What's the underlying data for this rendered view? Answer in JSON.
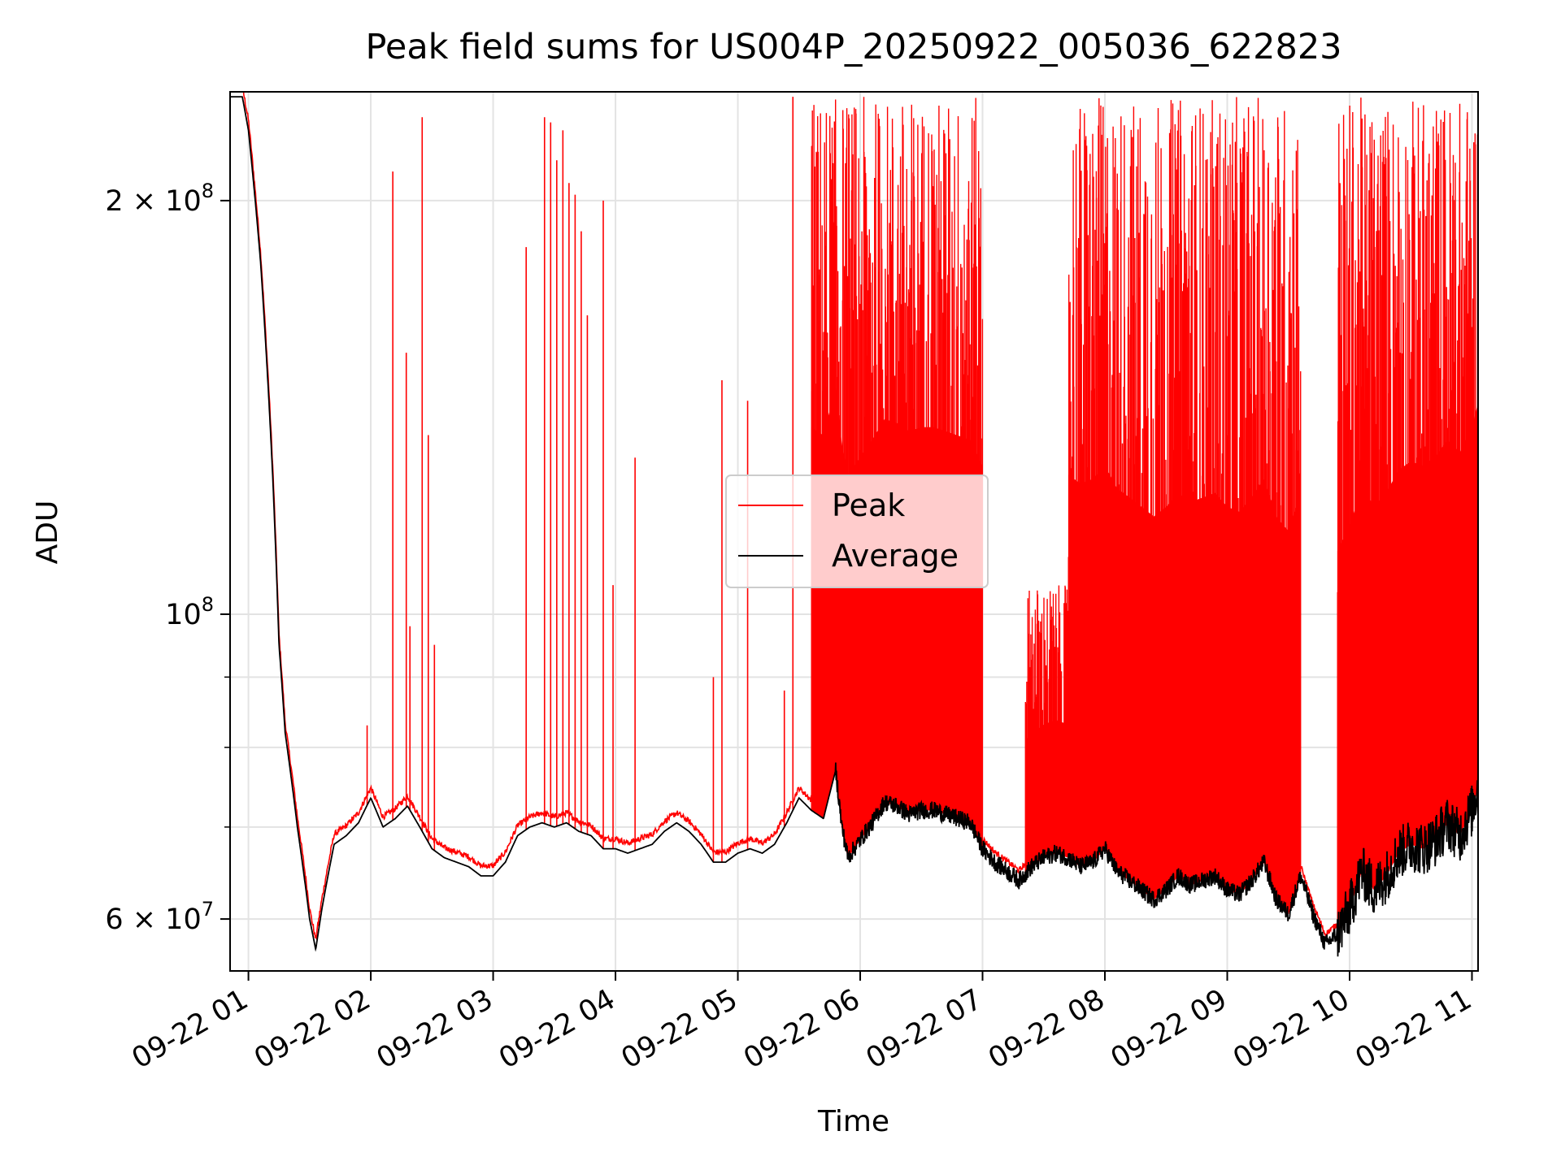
{
  "chart_data": {
    "type": "line",
    "title": "Peak field sums for US004P_20250922_005036_622823",
    "xlabel": "Time",
    "ylabel": "ADU",
    "yscale": "log",
    "ylim": [
      55000000,
      240000000
    ],
    "xlim_hours": [
      0.85,
      11.05
    ],
    "grid": true,
    "legend_position": "center",
    "x_ticks": [
      {
        "hour": 1,
        "label": "09-22 01"
      },
      {
        "hour": 2,
        "label": "09-22 02"
      },
      {
        "hour": 3,
        "label": "09-22 03"
      },
      {
        "hour": 4,
        "label": "09-22 04"
      },
      {
        "hour": 5,
        "label": "09-22 05"
      },
      {
        "hour": 6,
        "label": "09-22 06"
      },
      {
        "hour": 7,
        "label": "09-22 07"
      },
      {
        "hour": 8,
        "label": "09-22 08"
      },
      {
        "hour": 9,
        "label": "09-22 09"
      },
      {
        "hour": 10,
        "label": "09-22 10"
      },
      {
        "hour": 11,
        "label": "09-22 11"
      }
    ],
    "y_ticks": [
      {
        "value": 60000000,
        "base": "6 × 10",
        "exp": "7"
      },
      {
        "value": 100000000,
        "base": "10",
        "exp": "8"
      },
      {
        "value": 200000000,
        "base": "2 × 10",
        "exp": "8"
      }
    ],
    "y_minor_ticks": [
      70000000,
      80000000,
      90000000
    ],
    "series": [
      {
        "name": "Average",
        "color": "#000000",
        "hours": [
          0.85,
          0.95,
          1.0,
          1.1,
          1.2,
          1.25,
          1.3,
          1.4,
          1.5,
          1.55,
          1.6,
          1.7,
          1.8,
          1.9,
          2.0,
          2.1,
          2.2,
          2.3,
          2.4,
          2.5,
          2.6,
          2.7,
          2.8,
          2.9,
          3.0,
          3.1,
          3.2,
          3.3,
          3.4,
          3.5,
          3.6,
          3.7,
          3.8,
          3.9,
          4.0,
          4.1,
          4.2,
          4.3,
          4.4,
          4.5,
          4.6,
          4.7,
          4.8,
          4.9,
          5.0,
          5.1,
          5.2,
          5.3,
          5.4,
          5.5,
          5.6,
          5.7,
          5.8,
          5.85,
          5.9,
          6.0,
          6.1,
          6.2,
          6.3,
          6.4,
          6.5,
          6.6,
          6.7,
          6.8,
          6.9,
          7.0,
          7.1,
          7.2,
          7.3,
          7.4,
          7.5,
          7.6,
          7.7,
          7.8,
          7.9,
          8.0,
          8.1,
          8.2,
          8.3,
          8.4,
          8.5,
          8.6,
          8.7,
          8.8,
          8.9,
          9.0,
          9.1,
          9.2,
          9.3,
          9.4,
          9.5,
          9.6,
          9.7,
          9.8,
          9.9,
          10.0,
          10.1,
          10.2,
          10.3,
          10.4,
          10.5,
          10.6,
          10.7,
          10.8,
          10.9,
          11.0,
          11.05
        ],
        "values": [
          238000000,
          238000000,
          225000000,
          180000000,
          125000000,
          95000000,
          82000000,
          70000000,
          60000000,
          57000000,
          61000000,
          68000000,
          69000000,
          70500000,
          73500000,
          70000000,
          71000000,
          72500000,
          70000000,
          67500000,
          66500000,
          66000000,
          65500000,
          64500000,
          64500000,
          66000000,
          69000000,
          70000000,
          70500000,
          70000000,
          70500000,
          69500000,
          69000000,
          67500000,
          67500000,
          67000000,
          67500000,
          68000000,
          69500000,
          70500000,
          69500000,
          68000000,
          66000000,
          66000000,
          67000000,
          67500000,
          67000000,
          68000000,
          70500000,
          73500000,
          72000000,
          71000000,
          77000000,
          70000000,
          66500000,
          68500000,
          70500000,
          73000000,
          72500000,
          71500000,
          72000000,
          72000000,
          71500000,
          71000000,
          70500000,
          67500000,
          66000000,
          65000000,
          64000000,
          65500000,
          66500000,
          67000000,
          66500000,
          65500000,
          66000000,
          67500000,
          65000000,
          64000000,
          63000000,
          62000000,
          63000000,
          64500000,
          63500000,
          64000000,
          64500000,
          63000000,
          62500000,
          64000000,
          66000000,
          62000000,
          60500000,
          64500000,
          60500000,
          57500000,
          58500000,
          61000000,
          65000000,
          63000000,
          64500000,
          67000000,
          68000000,
          67500000,
          68500000,
          70500000,
          69000000,
          72000000,
          75000000
        ]
      },
      {
        "name": "Peak",
        "color": "#ff0000",
        "spikes": [
          {
            "hour": 1.97,
            "value": 83000000
          },
          {
            "hour": 2.18,
            "value": 210000000
          },
          {
            "hour": 2.29,
            "value": 155000000
          },
          {
            "hour": 2.32,
            "value": 98000000
          },
          {
            "hour": 2.42,
            "value": 230000000
          },
          {
            "hour": 2.47,
            "value": 135000000
          },
          {
            "hour": 2.52,
            "value": 95000000
          },
          {
            "hour": 3.27,
            "value": 185000000
          },
          {
            "hour": 3.42,
            "value": 230000000
          },
          {
            "hour": 3.47,
            "value": 228000000
          },
          {
            "hour": 3.52,
            "value": 214000000
          },
          {
            "hour": 3.57,
            "value": 225000000
          },
          {
            "hour": 3.62,
            "value": 206000000
          },
          {
            "hour": 3.67,
            "value": 202000000
          },
          {
            "hour": 3.72,
            "value": 190000000
          },
          {
            "hour": 3.77,
            "value": 165000000
          },
          {
            "hour": 3.9,
            "value": 200000000
          },
          {
            "hour": 3.98,
            "value": 105000000
          },
          {
            "hour": 4.16,
            "value": 130000000
          },
          {
            "hour": 4.8,
            "value": 90000000
          },
          {
            "hour": 4.87,
            "value": 148000000
          },
          {
            "hour": 5.08,
            "value": 143000000
          },
          {
            "hour": 5.38,
            "value": 88000000
          },
          {
            "hour": 5.45,
            "value": 238000000
          }
        ],
        "dense_regions": [
          {
            "start_hour": 5.6,
            "end_hour": 7.0,
            "upper": 238000000
          },
          {
            "start_hour": 7.35,
            "end_hour": 7.7,
            "upper": 105000000
          },
          {
            "start_hour": 7.7,
            "end_hour": 9.6,
            "upper": 238000000
          },
          {
            "start_hour": 9.9,
            "end_hour": 11.05,
            "upper": 238000000
          }
        ]
      }
    ]
  }
}
